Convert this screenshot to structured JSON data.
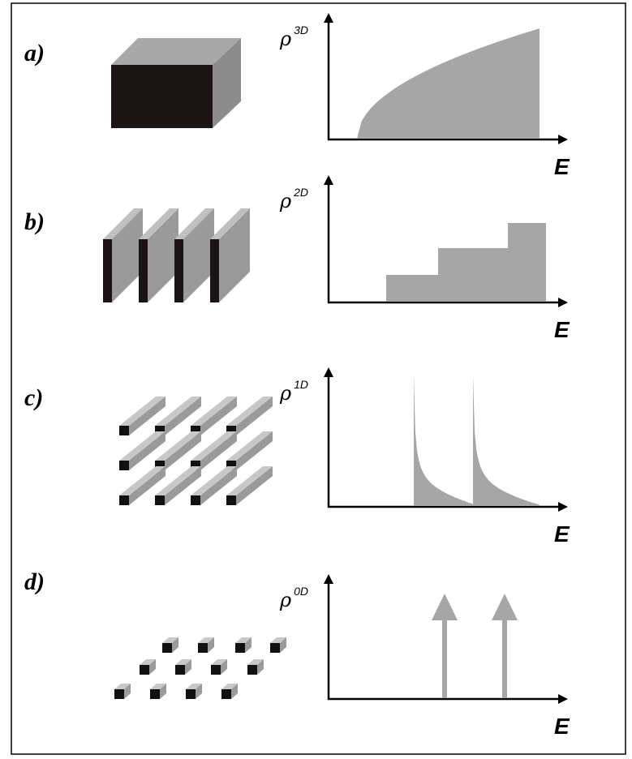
{
  "panels": [
    {
      "label": "a)",
      "y_axis": {
        "symbol": "ρ",
        "superscript": "3D"
      },
      "x_axis": "E"
    },
    {
      "label": "b)",
      "y_axis": {
        "symbol": "ρ",
        "superscript": "2D"
      },
      "x_axis": "E"
    },
    {
      "label": "c)",
      "y_axis": {
        "symbol": "ρ",
        "superscript": "1D"
      },
      "x_axis": "E"
    },
    {
      "label": "d)",
      "y_axis": {
        "symbol": "ρ",
        "superscript": "0D"
      },
      "x_axis": "E"
    }
  ]
}
